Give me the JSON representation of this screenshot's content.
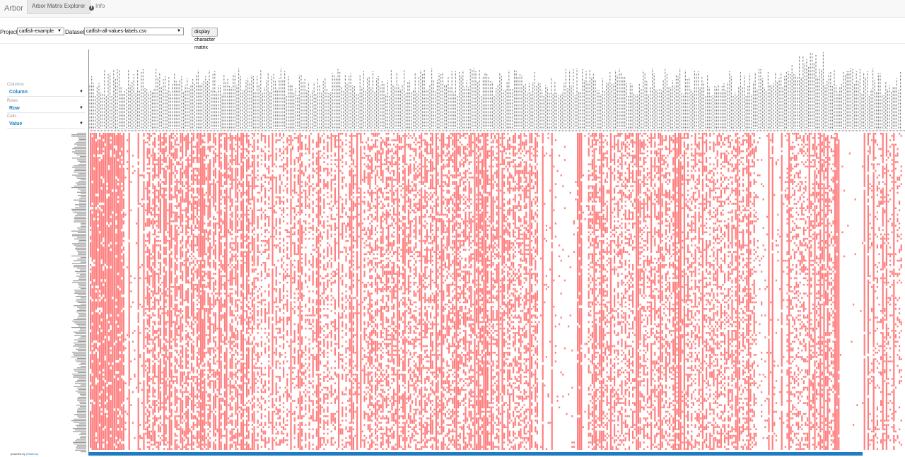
{
  "navbar": {
    "brand": "Arbor",
    "tabs": [
      {
        "label": "Arbor Matrix Explorer",
        "active": true
      },
      {
        "label": "Info",
        "icon": "info-circle-icon",
        "active": false
      }
    ]
  },
  "controls": {
    "project_label": "Project",
    "project_value": "catfish-example",
    "dataset_label": "Dataset",
    "dataset_value": "catfish-all-values-labels.csv",
    "display_button": "display character matrix"
  },
  "config": {
    "columns_label": "Columns",
    "columns_value": "Column",
    "rows_label": "Rows",
    "rows_value": "Row",
    "cells_label": "Cells",
    "cells_value": "Value"
  },
  "footer": {
    "powered_by": "powered by",
    "link": "jHeatmap"
  },
  "colors": {
    "cell": "#ff8080",
    "scrollbar": "#1f7bc4",
    "grid_label": "#333333"
  }
}
